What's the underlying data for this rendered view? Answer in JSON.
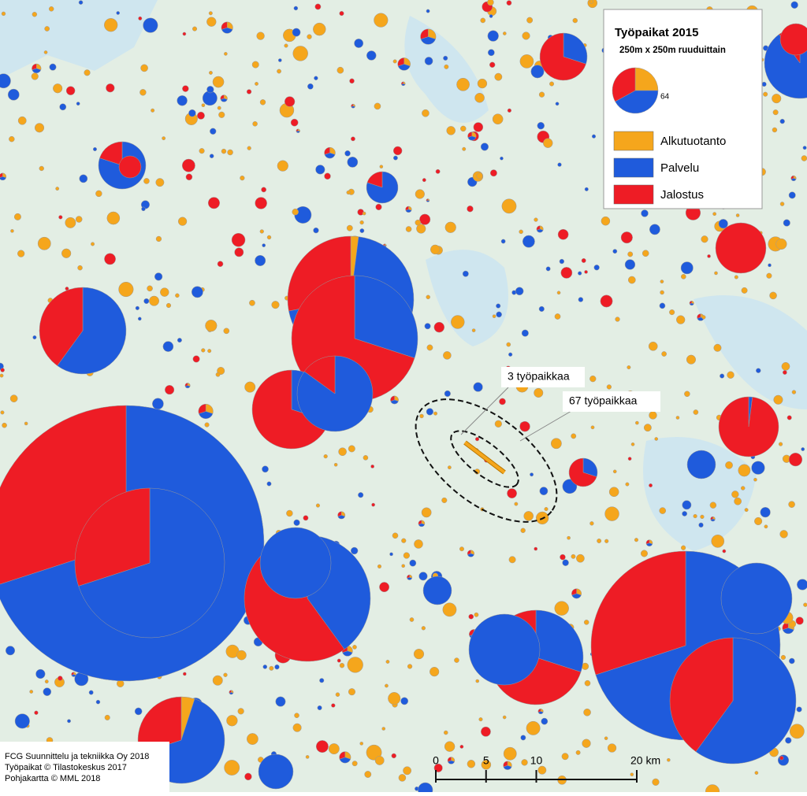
{
  "legend": {
    "title": "Työpaikat 2015",
    "subtitle": "250m x 250m ruuduittain",
    "sample_value": 64,
    "items": [
      {
        "label": "Alkutuotanto",
        "color": "#f5a61c"
      },
      {
        "label": "Palvelu",
        "color": "#1f5bdc"
      },
      {
        "label": "Jalostus",
        "color": "#ee1c25"
      }
    ]
  },
  "annotations": [
    "3 työpaikkaa",
    "67 työpaikkaa"
  ],
  "credits": [
    "FCG Suunnittelu ja tekniikka Oy 2018",
    "Työpaikat © Tilastokeskus 2017",
    "Pohjakartta © MML 2018"
  ],
  "scale": {
    "ticks": [
      0,
      5,
      10,
      {
        "value": 20,
        "label": "20 km"
      }
    ]
  }
}
